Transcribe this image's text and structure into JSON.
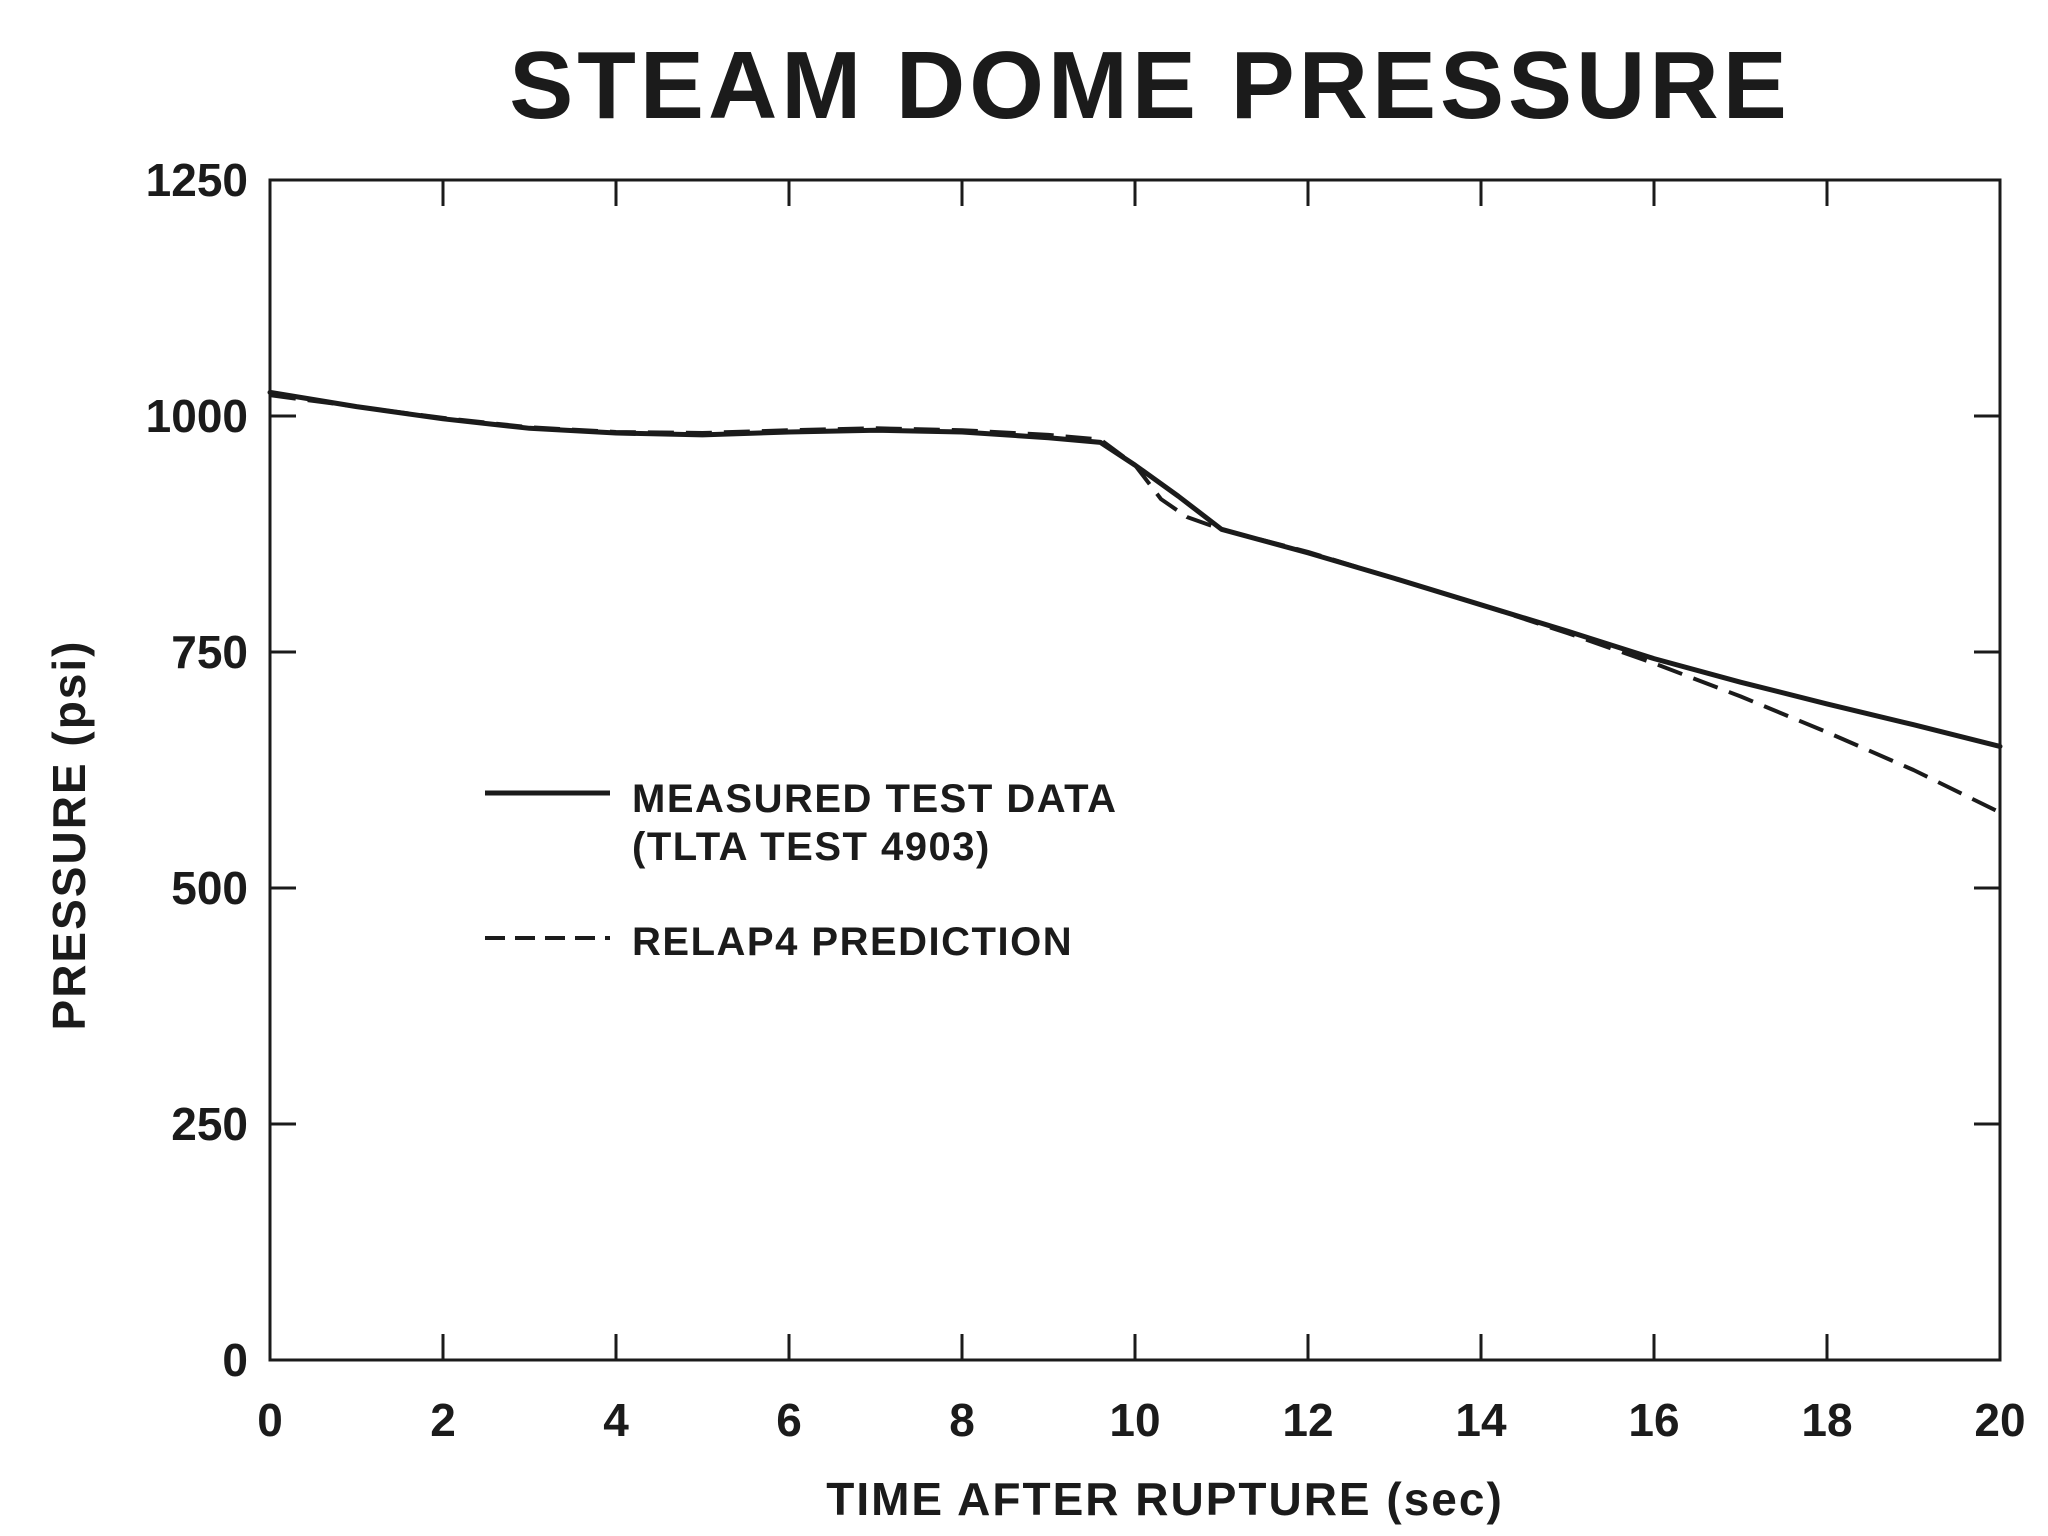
{
  "chart_data": {
    "type": "line",
    "title": "STEAM DOME PRESSURE",
    "xlabel": "TIME AFTER RUPTURE (sec)",
    "ylabel": "PRESSURE (psi)",
    "xlim": [
      0,
      20
    ],
    "ylim": [
      0,
      1250
    ],
    "x_ticks": [
      0,
      2,
      4,
      6,
      8,
      10,
      12,
      14,
      16,
      18,
      20
    ],
    "x_tick_labels": [
      "0",
      "2",
      "4",
      "6",
      "8",
      "10",
      "12",
      "14",
      "16",
      "18",
      "20"
    ],
    "y_ticks": [
      0,
      250,
      500,
      750,
      1000,
      1250
    ],
    "y_tick_labels": [
      "0",
      "250",
      "500",
      "750",
      "1000",
      "1250"
    ],
    "grid": false,
    "legend_position": "center-left",
    "series": [
      {
        "name": "MEASURED TEST DATA (TLTA TEST 4903)",
        "legend_line1": "MEASURED TEST DATA",
        "legend_line2": "(TLTA TEST 4903)",
        "style": "solid",
        "x": [
          0,
          1,
          2,
          3,
          4,
          5,
          6,
          7,
          8,
          9,
          9.6,
          10,
          10.5,
          11,
          12,
          13,
          14,
          15,
          16,
          17,
          18,
          19,
          20
        ],
        "y": [
          1025,
          1010,
          997,
          987,
          982,
          980,
          983,
          985,
          983,
          977,
          972,
          948,
          915,
          880,
          855,
          828,
          800,
          772,
          743,
          718,
          695,
          673,
          650
        ]
      },
      {
        "name": "RELAP4 PREDICTION",
        "legend_line1": "RELAP4 PREDICTION",
        "style": "dashed",
        "x": [
          0,
          1,
          2,
          3,
          4,
          5,
          6,
          7,
          8,
          9,
          9.6,
          10,
          10.3,
          10.6,
          11,
          12,
          13,
          14,
          15,
          16,
          17,
          18,
          19,
          20
        ],
        "y": [
          1022,
          1010,
          998,
          988,
          983,
          982,
          985,
          987,
          985,
          980,
          975,
          948,
          912,
          893,
          880,
          856,
          828,
          800,
          770,
          738,
          703,
          665,
          625,
          580
        ]
      }
    ]
  }
}
